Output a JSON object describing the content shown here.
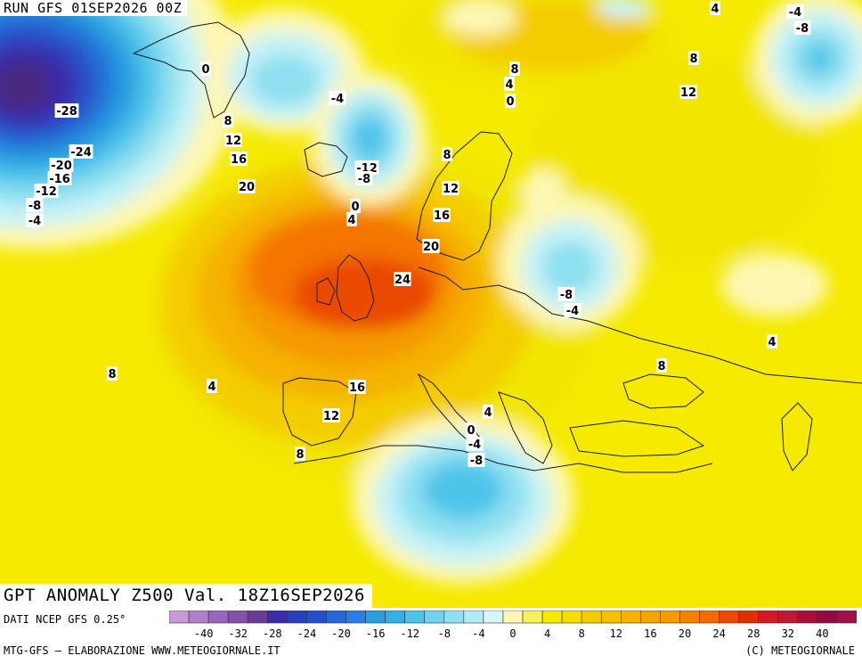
{
  "header": {
    "run": "RUN GFS 01SEP2026 00Z",
    "title": "GPT ANOMALY Z500 Val. 18Z16SEP2026"
  },
  "map": {
    "background": "#f5ea00",
    "fill_bands": [
      {
        "value": 4,
        "color": "#f2e600"
      },
      {
        "value": 8,
        "color": "#f4cd00"
      },
      {
        "value": 12,
        "color": "#f5b200"
      },
      {
        "value": 16,
        "color": "#f59a00"
      },
      {
        "value": 20,
        "color": "#f47400"
      },
      {
        "value": 24,
        "color": "#ea4a00"
      },
      {
        "value": 0,
        "color": "#fdf7b4"
      },
      {
        "value": -4,
        "color": "#c8f3f7"
      },
      {
        "value": -8,
        "color": "#8fe0f0"
      },
      {
        "value": -12,
        "color": "#4fc4ea"
      },
      {
        "value": -16,
        "color": "#2c9ee0"
      },
      {
        "value": -20,
        "color": "#2474d8"
      },
      {
        "value": -24,
        "color": "#2a4bc8"
      },
      {
        "value": -28,
        "color": "#3a2ca8"
      },
      {
        "value": -32,
        "color": "#4a2a80"
      }
    ],
    "contour_labels": [
      "-28",
      "-24",
      "-20",
      "-16",
      "-12",
      "-8",
      "-4",
      "0",
      "8",
      "12",
      "16",
      "20",
      "-4",
      "-12",
      "-8",
      "0",
      "4",
      "8",
      "4",
      "0",
      "8",
      "12",
      "16",
      "20",
      "24",
      "4",
      "-4",
      "-8",
      "8",
      "12",
      "-8",
      "-4",
      "4",
      "8",
      "8",
      "4",
      "16",
      "12",
      "8",
      "4",
      "0",
      "-4",
      "-8"
    ]
  },
  "footer": {
    "source": "DATI NCEP GFS 0.25°",
    "credit": "MTG-GFS — ELABORAZIONE WWW.METEOGIORNALE.IT",
    "copyright": "(C) METEOGIORNALE"
  },
  "colorbar": {
    "colors": [
      "#c99ad8",
      "#b27fcc",
      "#9a66bb",
      "#8450a8",
      "#6a3a96",
      "#3a2ca8",
      "#2a3fc0",
      "#2450d0",
      "#2468dc",
      "#2a80e2",
      "#2c9ee0",
      "#35b0e6",
      "#4fc4ea",
      "#6fd2ee",
      "#8fe0f0",
      "#b0ecf4",
      "#d6f6f8",
      "#fdf7b4",
      "#f7f05a",
      "#f5ea00",
      "#f4de00",
      "#f4cd00",
      "#f5c000",
      "#f5b200",
      "#f5a500",
      "#f59a00",
      "#f48200",
      "#f26a00",
      "#ea4a00",
      "#e03000",
      "#d31a20",
      "#c01830",
      "#a8103a",
      "#900c40",
      "#a0104a"
    ],
    "tick_labels": [
      "-40",
      "-32",
      "-28",
      "-24",
      "-20",
      "-16",
      "-12",
      "-8",
      "-4",
      "0",
      "4",
      "8",
      "12",
      "16",
      "20",
      "24",
      "28",
      "32",
      "40"
    ]
  }
}
